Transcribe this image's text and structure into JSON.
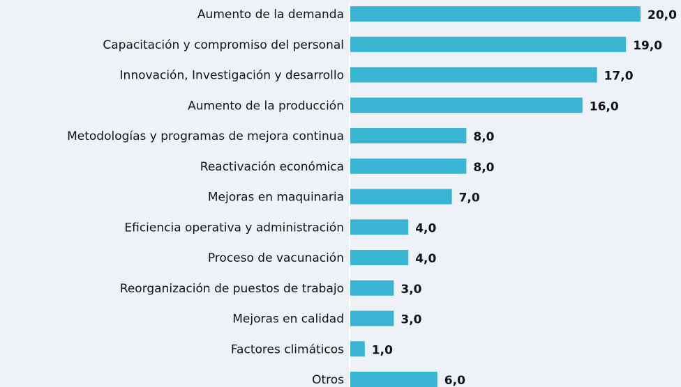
{
  "chart_data": {
    "type": "hbar",
    "categories": [
      "Aumento de la demanda",
      "Capacitación y compromiso del personal",
      "Innovación, Investigación y desarrollo",
      "Aumento de la producción",
      "Metodologías y programas de mejora continua",
      "Reactivación económica",
      "Mejoras en maquinaria",
      "Eficiencia operativa y administración",
      "Proceso de vacunación",
      "Reorganización de puestos de trabajo",
      "Mejoras en calidad",
      "Factores climáticos",
      "Otros"
    ],
    "values": [
      20,
      19,
      17,
      16,
      8,
      8,
      7,
      4,
      4,
      3,
      3,
      1,
      6
    ],
    "value_labels": [
      "20,0",
      "19,0",
      "17,0",
      "16,0",
      "8,0",
      "8,0",
      "7,0",
      "4,0",
      "4,0",
      "3,0",
      "3,0",
      "1,0",
      "6,0"
    ],
    "color": "#3ab4d3"
  }
}
